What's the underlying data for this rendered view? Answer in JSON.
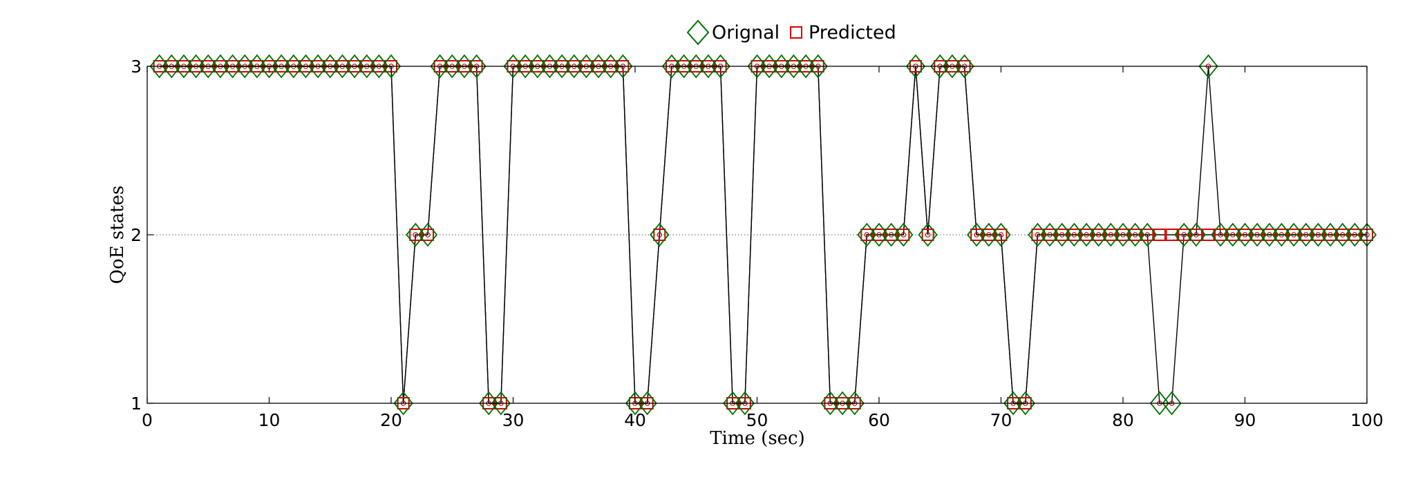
{
  "chart_data": {
    "type": "line",
    "xlabel": "Time (sec)",
    "ylabel": "QoE states",
    "xlim": [
      0,
      100
    ],
    "ylim": [
      1,
      3
    ],
    "xticks": [
      0,
      10,
      20,
      30,
      40,
      50,
      60,
      70,
      80,
      90,
      100
    ],
    "yticks": [
      1,
      2,
      3
    ],
    "grid": "horizontal dotted at y = 2",
    "legend_position": "top-center",
    "x": [
      1,
      2,
      3,
      4,
      5,
      6,
      7,
      8,
      9,
      10,
      11,
      12,
      13,
      14,
      15,
      16,
      17,
      18,
      19,
      20,
      21,
      22,
      23,
      24,
      25,
      26,
      27,
      28,
      29,
      30,
      31,
      32,
      33,
      34,
      35,
      36,
      37,
      38,
      39,
      40,
      41,
      42,
      43,
      44,
      45,
      46,
      47,
      48,
      49,
      50,
      51,
      52,
      53,
      54,
      55,
      56,
      57,
      58,
      59,
      60,
      61,
      62,
      63,
      64,
      65,
      66,
      67,
      68,
      69,
      70,
      71,
      72,
      73,
      74,
      75,
      76,
      77,
      78,
      79,
      80,
      81,
      82,
      83,
      84,
      85,
      86,
      87,
      88,
      89,
      90,
      91,
      92,
      93,
      94,
      95,
      96,
      97,
      98,
      99,
      100
    ],
    "series": [
      {
        "name": "Orignal",
        "marker": "diamond",
        "color": "#007000",
        "values": [
          3,
          3,
          3,
          3,
          3,
          3,
          3,
          3,
          3,
          3,
          3,
          3,
          3,
          3,
          3,
          3,
          3,
          3,
          3,
          3,
          1,
          2,
          2,
          3,
          3,
          3,
          3,
          1,
          1,
          3,
          3,
          3,
          3,
          3,
          3,
          3,
          3,
          3,
          3,
          1,
          1,
          2,
          3,
          3,
          3,
          3,
          3,
          1,
          1,
          3,
          3,
          3,
          3,
          3,
          3,
          1,
          1,
          1,
          2,
          2,
          2,
          2,
          3,
          2,
          3,
          3,
          3,
          2,
          2,
          2,
          1,
          1,
          2,
          2,
          2,
          2,
          2,
          2,
          2,
          2,
          2,
          2,
          1,
          1,
          2,
          2,
          3,
          2,
          2,
          2,
          2,
          2,
          2,
          2,
          2,
          2,
          2,
          2,
          2,
          2
        ]
      },
      {
        "name": "Predicted",
        "marker": "square",
        "color": "#dd0000",
        "values": [
          3,
          3,
          3,
          3,
          3,
          3,
          3,
          3,
          3,
          3,
          3,
          3,
          3,
          3,
          3,
          3,
          3,
          3,
          3,
          3,
          1,
          2,
          2,
          3,
          3,
          3,
          3,
          1,
          1,
          3,
          3,
          3,
          3,
          3,
          3,
          3,
          3,
          3,
          3,
          1,
          1,
          2,
          3,
          3,
          3,
          3,
          3,
          1,
          1,
          3,
          3,
          3,
          3,
          3,
          3,
          1,
          1,
          1,
          2,
          2,
          2,
          2,
          3,
          2,
          3,
          3,
          3,
          2,
          2,
          2,
          1,
          1,
          2,
          2,
          2,
          2,
          2,
          2,
          2,
          2,
          2,
          2,
          2,
          2,
          2,
          2,
          2,
          2,
          2,
          2,
          2,
          2,
          2,
          2,
          2,
          2,
          2,
          2,
          2,
          2
        ]
      }
    ]
  }
}
